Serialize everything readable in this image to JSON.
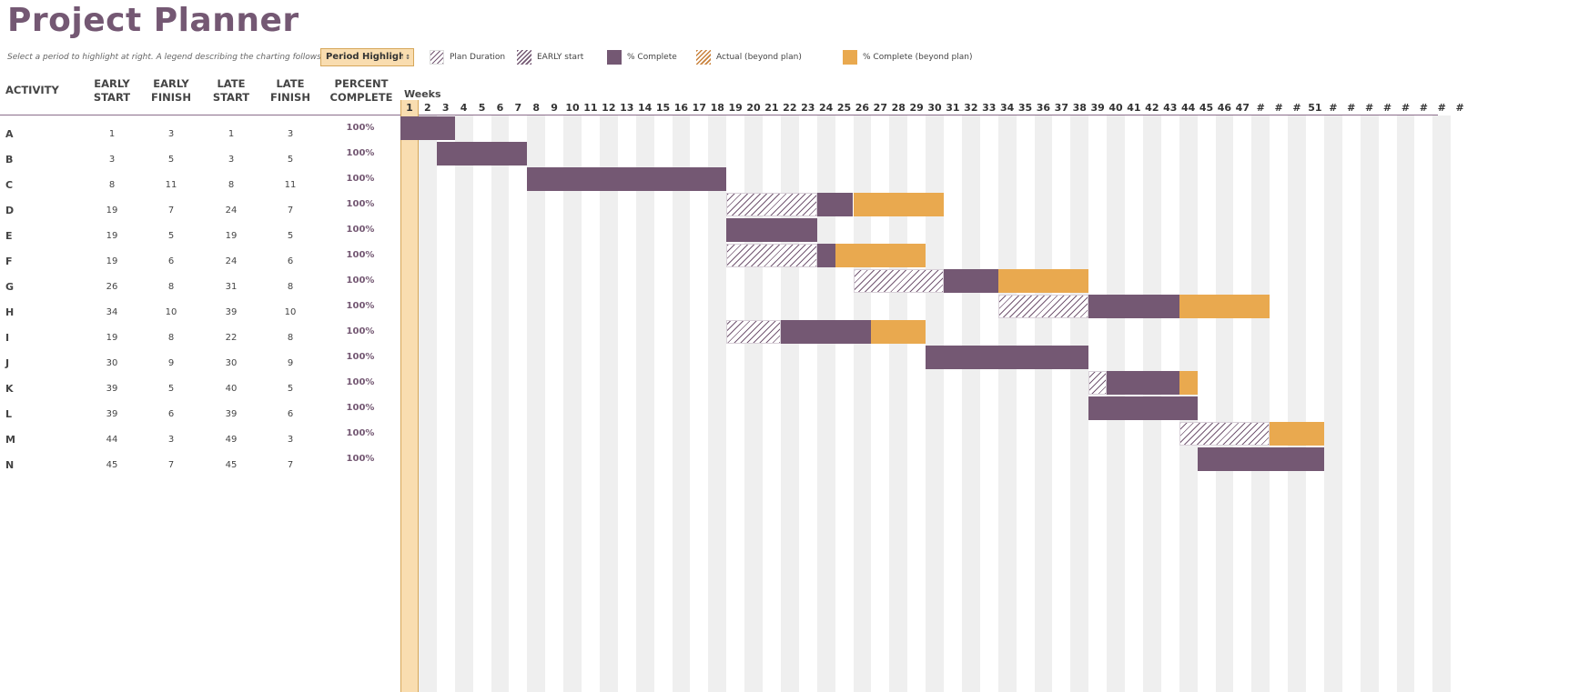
{
  "title": "Project Planner",
  "instruction": "Select a period to highlight at right.  A legend describing the charting follows.",
  "period_select": {
    "value": "Period Highlight",
    "arrow": "↕"
  },
  "legend": [
    {
      "label": "Plan Duration",
      "style": "plan"
    },
    {
      "label": "EARLY start",
      "style": "early"
    },
    {
      "label": "% Complete",
      "style": "complete"
    },
    {
      "label": "Actual (beyond plan)",
      "style": "actual"
    },
    {
      "label": "% Complete (beyond plan)",
      "style": "beyond"
    }
  ],
  "columns": {
    "activity": "ACTIVITY",
    "early_start": "EARLY\nSTART",
    "early_finish": "EARLY\nFINISH",
    "late_start": "LATE\nSTART",
    "late_finish": "LATE\nFINISH",
    "percent_complete": "PERCENT\nCOMPLETE"
  },
  "weeks_label": "Weeks",
  "highlight_period": 1,
  "week_headers": [
    "1",
    "2",
    "3",
    "4",
    "5",
    "6",
    "7",
    "8",
    "9",
    "10",
    "11",
    "12",
    "13",
    "14",
    "15",
    "16",
    "17",
    "18",
    "19",
    "20",
    "21",
    "22",
    "23",
    "24",
    "25",
    "26",
    "27",
    "28",
    "29",
    "30",
    "31",
    "32",
    "33",
    "34",
    "35",
    "36",
    "37",
    "38",
    "39",
    "40",
    "41",
    "42",
    "43",
    "44",
    "45",
    "46",
    "47",
    "#",
    "#",
    "#",
    "51",
    "#",
    "#",
    "#",
    "#",
    "#",
    "#",
    "#",
    "#"
  ],
  "colors": {
    "accent": "#745873",
    "beyond": "#e9a94f",
    "highlight": "#f9ddb0"
  },
  "activities": [
    {
      "name": "A",
      "early_start": "1",
      "early_finish": "3",
      "late_start": "1",
      "late_finish": "3",
      "percent": "100%"
    },
    {
      "name": "B",
      "early_start": "3",
      "early_finish": "5",
      "late_start": "3",
      "late_finish": "5",
      "percent": "100%"
    },
    {
      "name": "C",
      "early_start": "8",
      "early_finish": "11",
      "late_start": "8",
      "late_finish": "11",
      "percent": "100%"
    },
    {
      "name": "D",
      "early_start": "19",
      "early_finish": "7",
      "late_start": "24",
      "late_finish": "7",
      "percent": "100%"
    },
    {
      "name": "E",
      "early_start": "19",
      "early_finish": "5",
      "late_start": "19",
      "late_finish": "5",
      "percent": "100%"
    },
    {
      "name": "F",
      "early_start": "19",
      "early_finish": "6",
      "late_start": "24",
      "late_finish": "6",
      "percent": "100%"
    },
    {
      "name": "G",
      "early_start": "26",
      "early_finish": "8",
      "late_start": "31",
      "late_finish": "8",
      "percent": "100%"
    },
    {
      "name": "H",
      "early_start": "34",
      "early_finish": "10",
      "late_start": "39",
      "late_finish": "10",
      "percent": "100%"
    },
    {
      "name": "I",
      "early_start": "19",
      "early_finish": "8",
      "late_start": "22",
      "late_finish": "8",
      "percent": "100%"
    },
    {
      "name": "J",
      "early_start": "30",
      "early_finish": "9",
      "late_start": "30",
      "late_finish": "9",
      "percent": "100%"
    },
    {
      "name": "K",
      "early_start": "39",
      "early_finish": "5",
      "late_start": "40",
      "late_finish": "5",
      "percent": "100%"
    },
    {
      "name": "L",
      "early_start": "39",
      "early_finish": "6",
      "late_start": "39",
      "late_finish": "6",
      "percent": "100%"
    },
    {
      "name": "M",
      "early_start": "44",
      "early_finish": "3",
      "late_start": "49",
      "late_finish": "3",
      "percent": "100%"
    },
    {
      "name": "N",
      "early_start": "45",
      "early_finish": "7",
      "late_start": "45",
      "late_finish": "7",
      "percent": "100%"
    }
  ]
}
